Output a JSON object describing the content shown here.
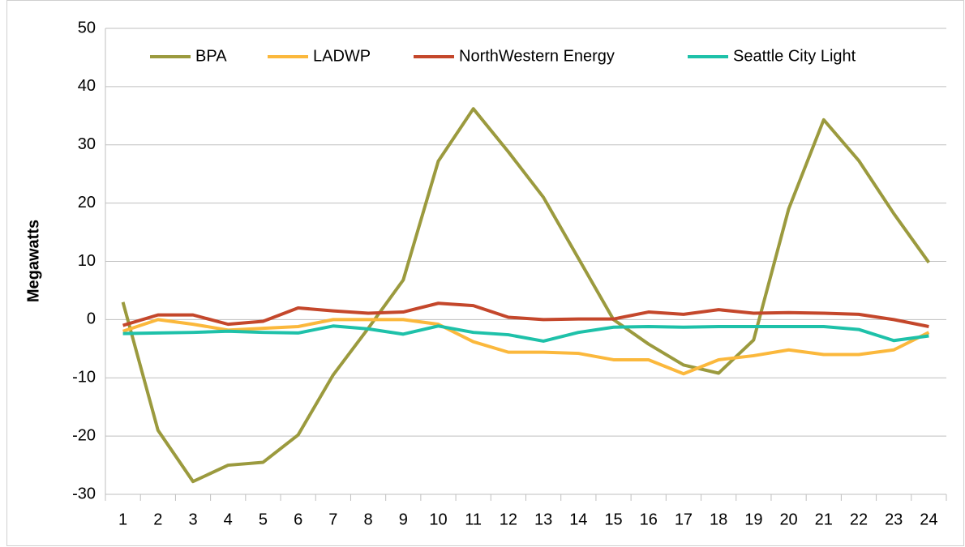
{
  "chart_data": {
    "type": "line",
    "y_label": "Megawatts",
    "categories": [
      "1",
      "2",
      "3",
      "4",
      "5",
      "6",
      "7",
      "8",
      "9",
      "10",
      "11",
      "12",
      "13",
      "14",
      "15",
      "16",
      "17",
      "18",
      "19",
      "20",
      "21",
      "22",
      "23",
      "24"
    ],
    "series": [
      {
        "name": "BPA",
        "color": "#9b9a3e",
        "values": [
          3,
          -19,
          -27.8,
          -25,
          -24.5,
          -19.8,
          -9.5,
          -1.5,
          6.8,
          27.2,
          36.2,
          28.8,
          21,
          10.5,
          0,
          -4.2,
          -7.8,
          -9.2,
          -3.5,
          19,
          34.3,
          27.3,
          18.2,
          9.8
        ]
      },
      {
        "name": "LADWP",
        "color": "#fbb83c",
        "values": [
          -2,
          0,
          -0.8,
          -1.8,
          -1.5,
          -1.2,
          0,
          0,
          0,
          -0.8,
          -3.8,
          -5.6,
          -5.6,
          -5.8,
          -6.9,
          -6.9,
          -9.3,
          -6.9,
          -6.2,
          -5.2,
          -6,
          -6,
          -5.2,
          -2.2
        ]
      },
      {
        "name": "NorthWestern Energy",
        "color": "#c4472b",
        "values": [
          -1,
          0.8,
          0.8,
          -0.8,
          -0.3,
          2,
          1.5,
          1.1,
          1.3,
          2.8,
          2.4,
          0.4,
          0,
          0.1,
          0.1,
          1.3,
          0.9,
          1.7,
          1.1,
          1.2,
          1.1,
          0.9,
          0,
          -1.2
        ]
      },
      {
        "name": "Seattle City Light",
        "color": "#1ec1a9",
        "values": [
          -2.4,
          -2.3,
          -2.2,
          -2,
          -2.2,
          -2.3,
          -1.1,
          -1.6,
          -2.5,
          -1.1,
          -2.2,
          -2.6,
          -3.7,
          -2.2,
          -1.3,
          -1.2,
          -1.3,
          -1.2,
          -1.2,
          -1.2,
          -1.2,
          -1.7,
          -3.6,
          -2.8
        ]
      }
    ],
    "ylim": [
      -30,
      50
    ],
    "yticks": [
      -30,
      -20,
      -10,
      0,
      10,
      20,
      30,
      40,
      50
    ],
    "grid": true,
    "legend": "top"
  }
}
